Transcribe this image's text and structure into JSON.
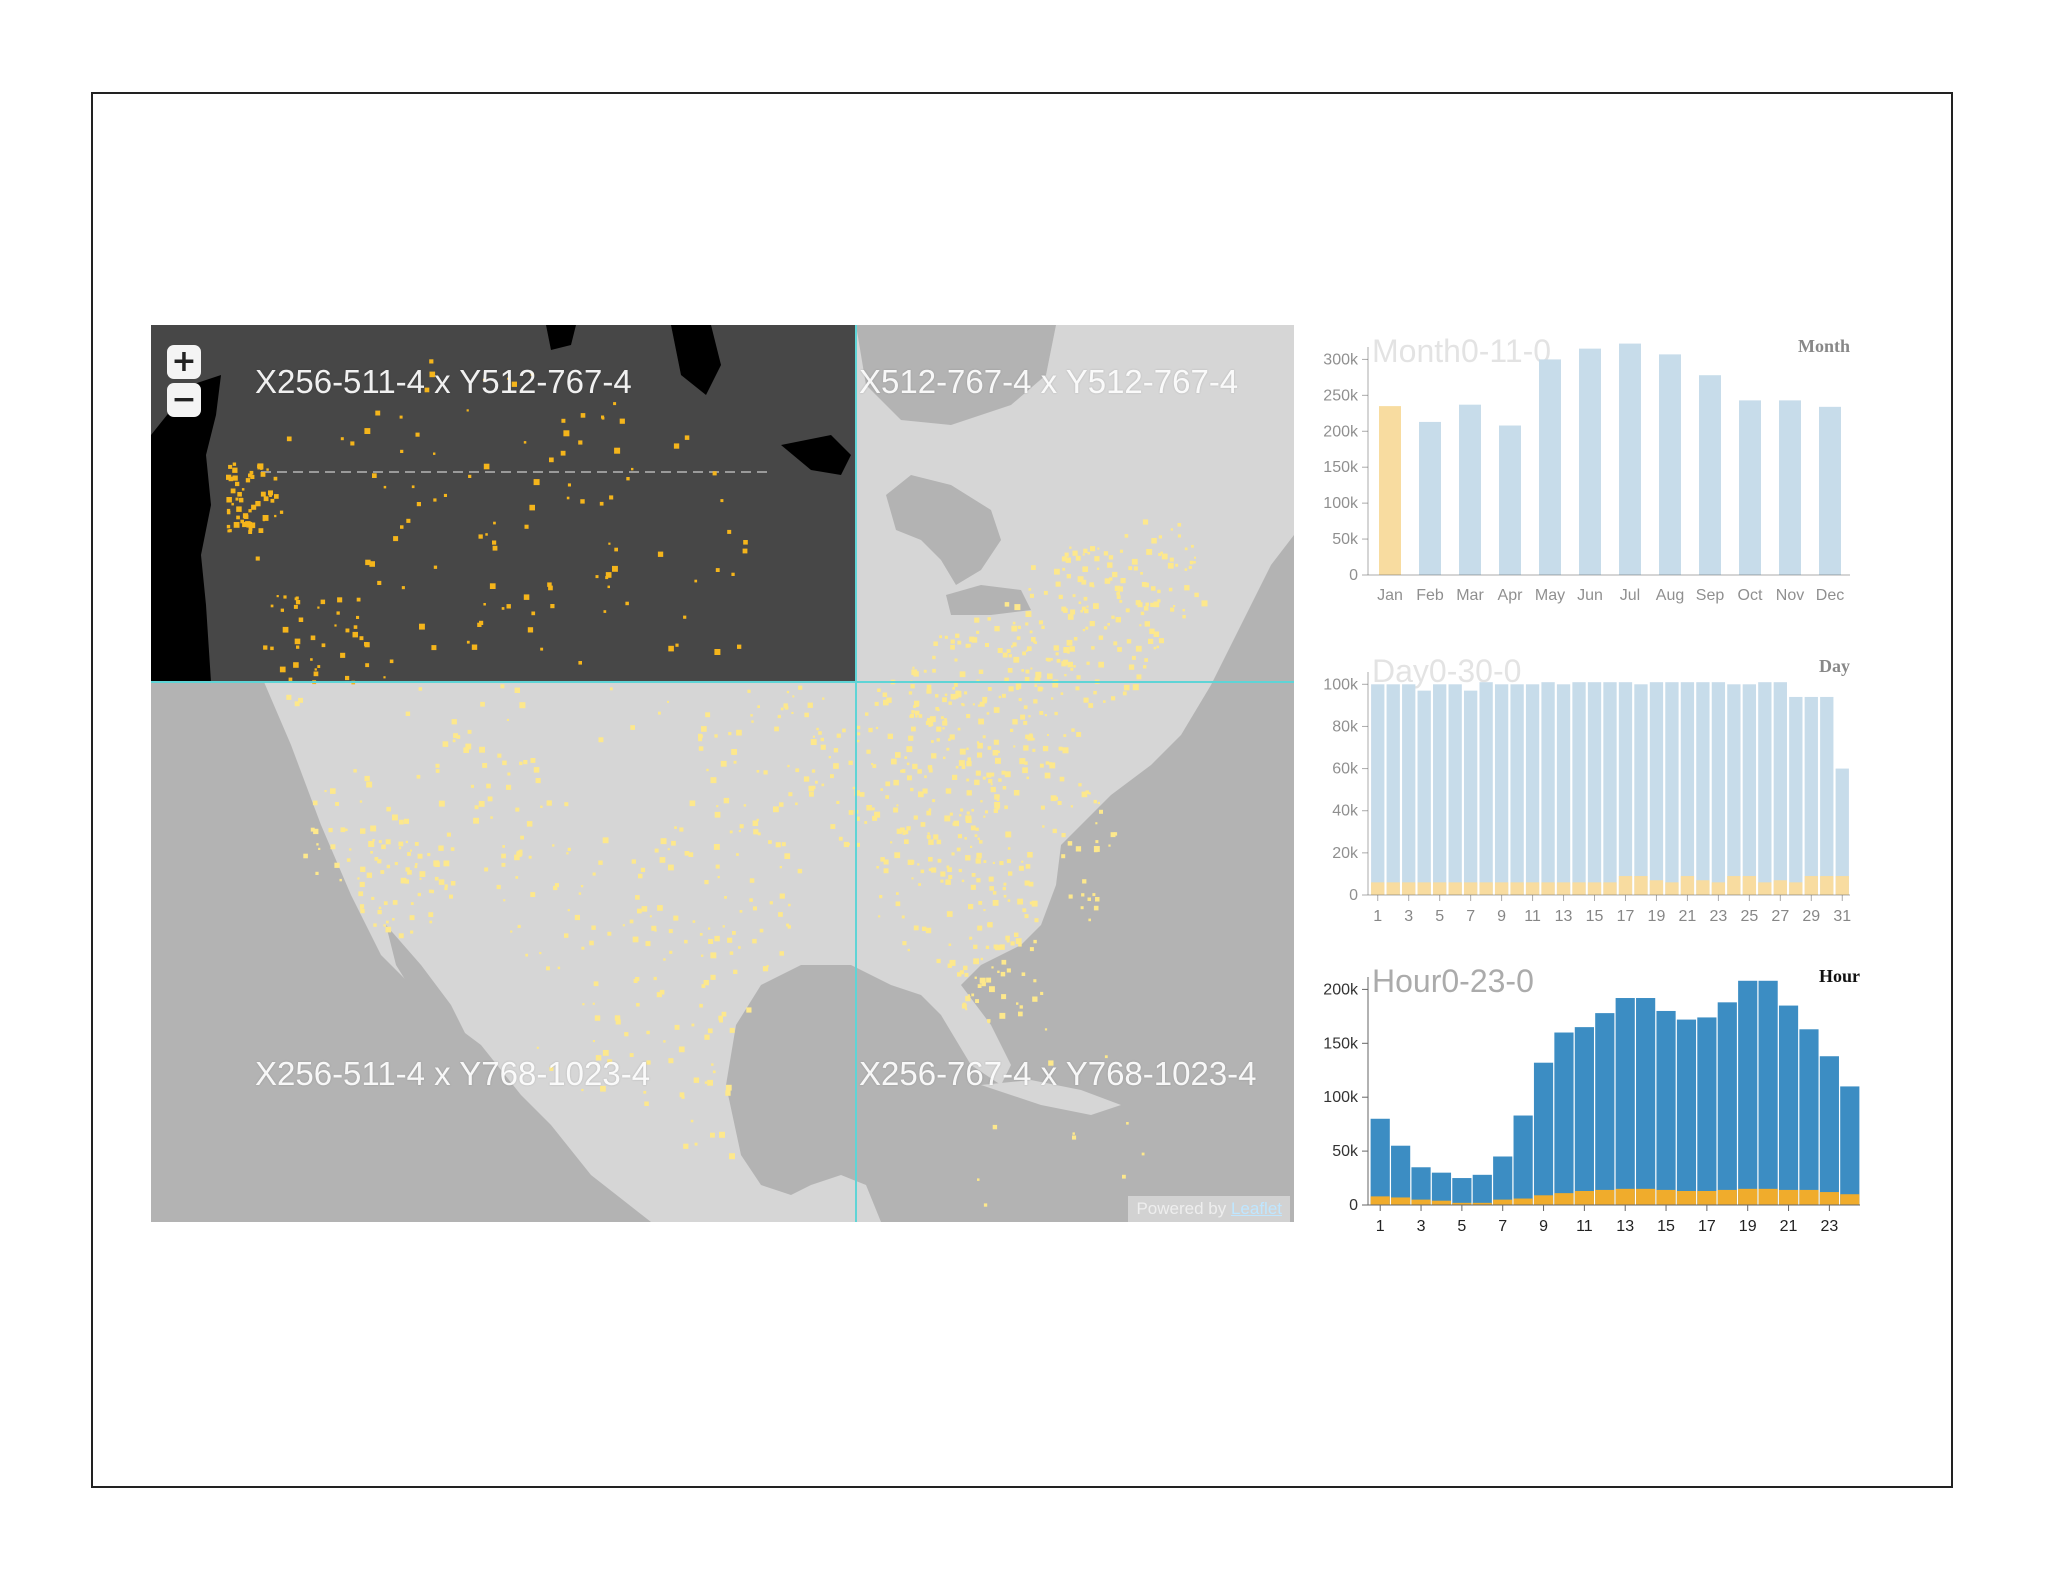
{
  "map": {
    "tiles": [
      {
        "label": "X256-511-4 x Y512-767-4"
      },
      {
        "label": "X512-767-4 x Y512-767-4"
      },
      {
        "label": "X256-511-4 x Y768-1023-4"
      },
      {
        "label": "X256-767-4 x Y768-1023-4"
      }
    ],
    "zoom_in_label": "+",
    "zoom_out_label": "−",
    "attribution_prefix": "Powered by ",
    "attribution_link": "Leaflet",
    "colors": {
      "land": "#d6d6d6",
      "water": "#b3b3b3",
      "selected_land": "#474747",
      "selected_water": "#000000",
      "point_bright": "#f5b51b",
      "point_faded": "#fde88c",
      "tile_grid": "#5fd4d6"
    }
  },
  "chart_data": [
    {
      "type": "bar",
      "title": "Month0-11-0",
      "corner_label": "Month",
      "categories": [
        "Jan",
        "Feb",
        "Mar",
        "Apr",
        "May",
        "Jun",
        "Jul",
        "Aug",
        "Sep",
        "Oct",
        "Nov",
        "Dec"
      ],
      "values": [
        235000,
        213000,
        237000,
        208000,
        300000,
        315000,
        322000,
        307000,
        278000,
        243000,
        243000,
        234000
      ],
      "highlighted_index": 0,
      "ylim": [
        0,
        300000
      ],
      "yticks": [
        "0",
        "50k",
        "100k",
        "150k",
        "200k",
        "250k",
        "300k"
      ],
      "colors": {
        "bar": "#c7dcea",
        "highlight": "#f8dca0"
      }
    },
    {
      "type": "bar",
      "title": "Day0-30-0",
      "corner_label": "Day",
      "categories": [
        "1",
        "2",
        "3",
        "4",
        "5",
        "6",
        "7",
        "8",
        "9",
        "10",
        "11",
        "12",
        "13",
        "14",
        "15",
        "16",
        "17",
        "18",
        "19",
        "20",
        "21",
        "22",
        "23",
        "24",
        "25",
        "26",
        "27",
        "28",
        "29",
        "30",
        "31"
      ],
      "x_tick_labels": [
        "1",
        "3",
        "5",
        "7",
        "9",
        "11",
        "13",
        "15",
        "17",
        "19",
        "21",
        "23",
        "25",
        "27",
        "29",
        "31"
      ],
      "series": [
        {
          "values": [
            100000,
            100000,
            100000,
            97000,
            100000,
            100000,
            97000,
            101000,
            100000,
            100000,
            100000,
            101000,
            100000,
            101000,
            101000,
            101000,
            101000,
            100000,
            101000,
            101000,
            101000,
            101000,
            101000,
            100000,
            100000,
            101000,
            101000,
            94000,
            94000,
            94000,
            60000
          ]
        },
        {
          "values": [
            6000,
            6000,
            6000,
            6000,
            6000,
            6000,
            6000,
            6000,
            6000,
            6000,
            6000,
            6000,
            6000,
            6000,
            6000,
            6000,
            9000,
            9000,
            7000,
            6000,
            9000,
            7000,
            6000,
            9000,
            9000,
            6000,
            7000,
            6000,
            9000,
            9000,
            9000
          ]
        }
      ],
      "ylim": [
        0,
        100000
      ],
      "yticks": [
        "0",
        "20k",
        "40k",
        "60k",
        "80k",
        "100k"
      ],
      "colors": {
        "bar": "#c7dcea",
        "highlight": "#f8dca0"
      }
    },
    {
      "type": "bar",
      "title": "Hour0-23-0",
      "corner_label": "Hour",
      "categories": [
        "1",
        "2",
        "3",
        "4",
        "5",
        "6",
        "7",
        "8",
        "9",
        "10",
        "11",
        "12",
        "13",
        "14",
        "15",
        "16",
        "17",
        "18",
        "19",
        "20",
        "21",
        "22",
        "23",
        "24"
      ],
      "x_tick_labels": [
        "1",
        "3",
        "5",
        "7",
        "9",
        "11",
        "13",
        "15",
        "17",
        "19",
        "21",
        "23"
      ],
      "series": [
        {
          "values": [
            80000,
            55000,
            35000,
            30000,
            25000,
            28000,
            45000,
            83000,
            132000,
            160000,
            165000,
            178000,
            192000,
            192000,
            180000,
            172000,
            174000,
            188000,
            208000,
            208000,
            185000,
            163000,
            138000,
            110000
          ]
        },
        {
          "values": [
            8000,
            7000,
            5000,
            4000,
            2000,
            2000,
            5000,
            6000,
            9000,
            11000,
            13000,
            14000,
            15000,
            15000,
            14000,
            13000,
            13000,
            14000,
            15000,
            15000,
            14000,
            14000,
            12000,
            10000
          ]
        }
      ],
      "ylim": [
        0,
        200000
      ],
      "yticks": [
        "0",
        "50k",
        "100k",
        "150k",
        "200k"
      ],
      "colors": {
        "bar": "#3c8dc3",
        "highlight": "#f0ac2c"
      }
    }
  ]
}
